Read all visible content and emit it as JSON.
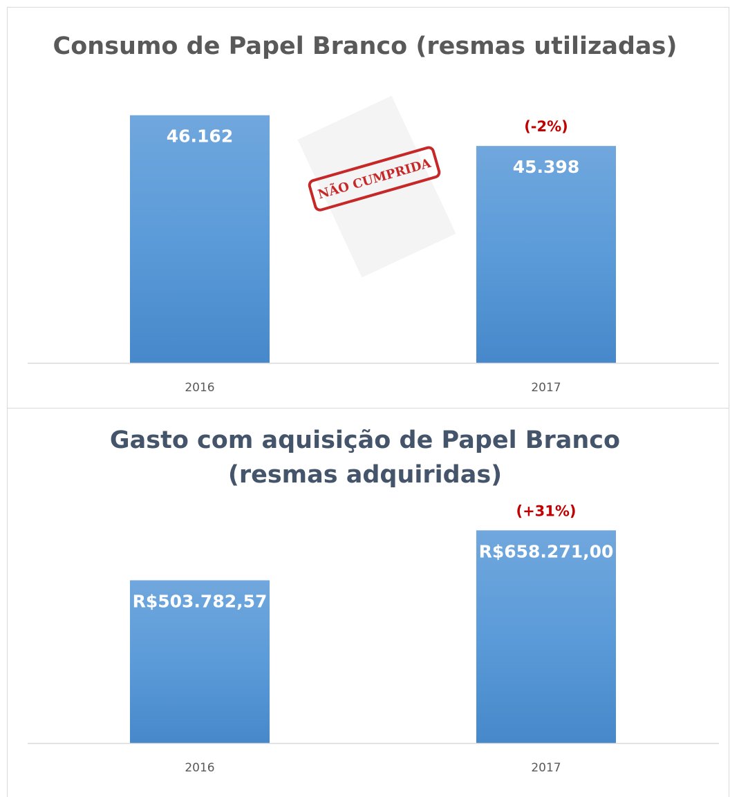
{
  "chart_data": [
    {
      "type": "bar",
      "title": "Consumo de Papel Branco (resmas utilizadas)",
      "categories": [
        "2016",
        "2017"
      ],
      "values": [
        46162,
        45398
      ],
      "value_labels": [
        "46.162",
        "45.398"
      ],
      "color": "#5b9bd5",
      "ylim": [
        40000,
        47000
      ],
      "annotation": "(-2%)",
      "stamp": "NÃO CUMPRIDA"
    },
    {
      "type": "bar",
      "title": "Gasto com aquisição de Papel Branco (resmas adquiridas)",
      "categories": [
        "2016",
        "2017"
      ],
      "values": [
        503782.57,
        658271.0
      ],
      "value_labels": [
        "R$503.782,57",
        "R$658.271,00"
      ],
      "color": "#5b9bd5",
      "ylim": [
        0,
        800000
      ],
      "annotation": "(+31%)"
    }
  ]
}
